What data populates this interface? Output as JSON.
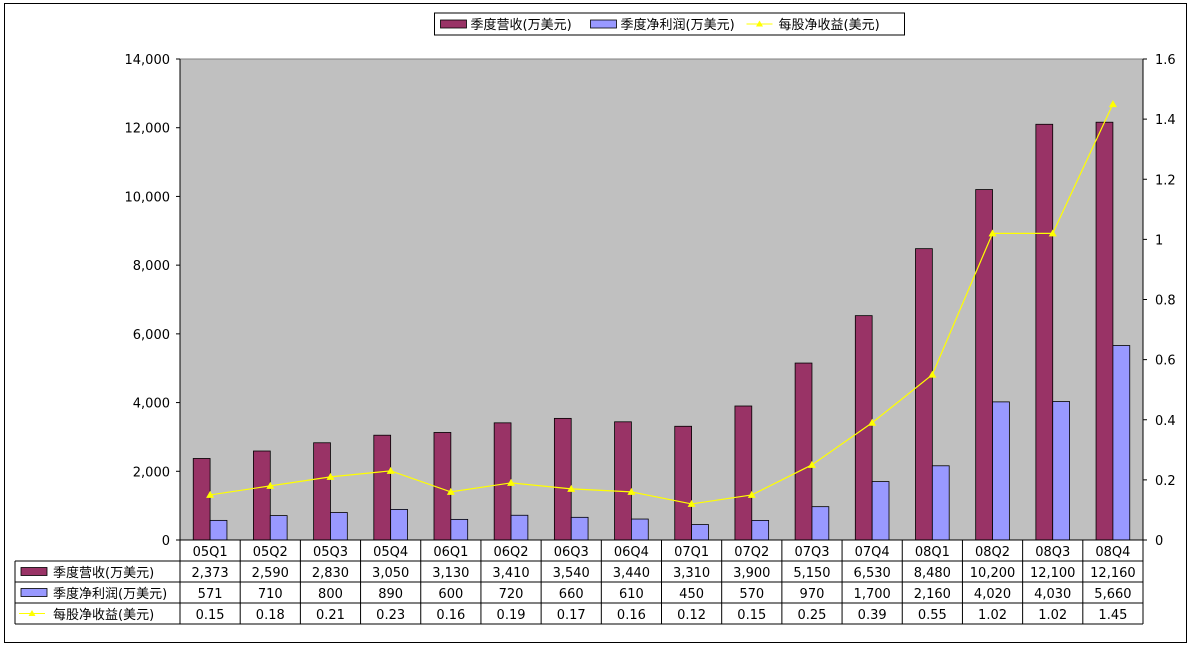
{
  "chart_data": {
    "type": "bar",
    "categories": [
      "05Q1",
      "05Q2",
      "05Q3",
      "05Q4",
      "06Q1",
      "06Q2",
      "06Q3",
      "06Q4",
      "07Q1",
      "07Q2",
      "07Q3",
      "07Q4",
      "08Q1",
      "08Q2",
      "08Q3",
      "08Q4"
    ],
    "series": [
      {
        "name": "季度营收(万美元)",
        "type": "bar",
        "axis": "left",
        "color": "#993366",
        "values": [
          2373,
          2590,
          2830,
          3050,
          3130,
          3410,
          3540,
          3440,
          3310,
          3900,
          5150,
          6530,
          8480,
          10200,
          12100,
          12160
        ],
        "labels": [
          "2,373",
          "2,590",
          "2,830",
          "3,050",
          "3,130",
          "3,410",
          "3,540",
          "3,440",
          "3,310",
          "3,900",
          "5,150",
          "6,530",
          "8,480",
          "10,200",
          "12,100",
          "12,160"
        ]
      },
      {
        "name": "季度净利润(万美元)",
        "type": "bar",
        "axis": "left",
        "color": "#9999FF",
        "values": [
          571,
          710,
          800,
          890,
          600,
          720,
          660,
          610,
          450,
          570,
          970,
          1700,
          2160,
          4020,
          4030,
          5660
        ],
        "labels": [
          "571",
          "710",
          "800",
          "890",
          "600",
          "720",
          "660",
          "610",
          "450",
          "570",
          "970",
          "1,700",
          "2,160",
          "4,020",
          "4,030",
          "5,660"
        ]
      },
      {
        "name": "每股净收益(美元)",
        "type": "line",
        "axis": "right",
        "color": "#FFFF00",
        "values": [
          0.15,
          0.18,
          0.21,
          0.23,
          0.16,
          0.19,
          0.17,
          0.16,
          0.12,
          0.15,
          0.25,
          0.39,
          0.55,
          1.02,
          1.02,
          1.45
        ],
        "labels": [
          "0.15",
          "0.18",
          "0.21",
          "0.23",
          "0.16",
          "0.19",
          "0.17",
          "0.16",
          "0.12",
          "0.15",
          "0.25",
          "0.39",
          "0.55",
          "1.02",
          "1.02",
          "1.45"
        ]
      }
    ],
    "y_left": {
      "min": 0,
      "max": 14000,
      "ticks": [
        "0",
        "2,000",
        "4,000",
        "6,000",
        "8,000",
        "10,000",
        "12,000",
        "14,000"
      ]
    },
    "y_right": {
      "min": 0,
      "max": 1.6,
      "ticks": [
        "0",
        "0.2",
        "0.4",
        "0.6",
        "0.8",
        "1",
        "1.2",
        "1.4",
        "1.6"
      ]
    },
    "plot_background": "#C0C0C0",
    "legend_position": "top",
    "data_table": true
  }
}
